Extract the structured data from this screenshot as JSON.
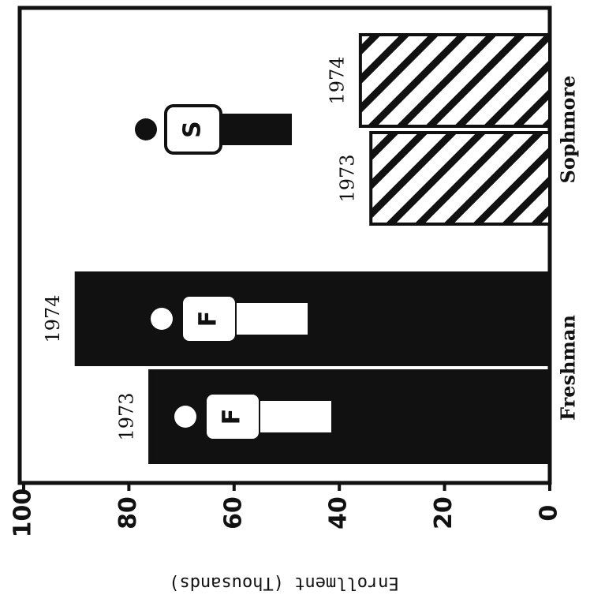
{
  "chart_data": {
    "type": "bar",
    "orientation": "rotated",
    "y_label": "Enrollment (Thousands)",
    "categories": [
      "Freshman",
      "Sophmore"
    ],
    "category_styles": [
      "solid",
      "hatch"
    ],
    "icon_letters": [
      "F",
      "S"
    ],
    "series": [
      {
        "name": "1973",
        "color": "#111111",
        "values": [
          76,
          34
        ]
      },
      {
        "name": "1974",
        "color": "#111111",
        "values": [
          90,
          36
        ]
      }
    ],
    "ylim": [
      0,
      100
    ],
    "yticks": [
      0,
      20,
      40,
      60,
      80,
      100
    ]
  }
}
